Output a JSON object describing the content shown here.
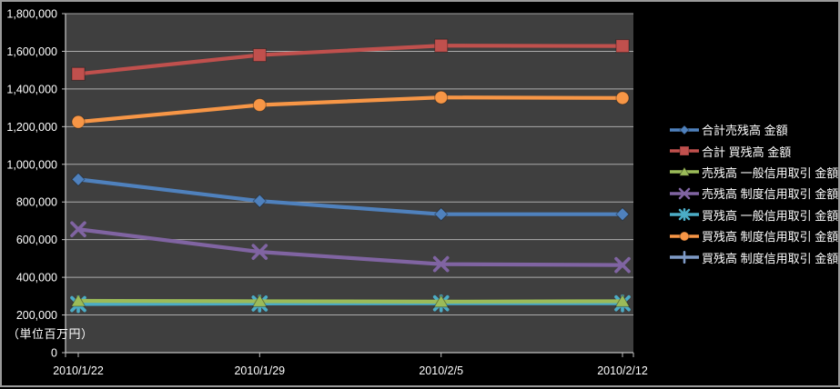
{
  "window": {
    "background": "#000000",
    "frame_border_color": "#9a9a9a"
  },
  "chart_data": {
    "type": "line",
    "title": "",
    "xlabel": "",
    "ylabel": "",
    "unit_label": "（単位百万円）",
    "categories": [
      "2010/1/22",
      "2010/1/29",
      "2010/2/5",
      "2010/2/12"
    ],
    "ylim": [
      0,
      1800000
    ],
    "ytick_step": 200000,
    "yticklabels": [
      "0",
      "200,000",
      "400,000",
      "600,000",
      "800,000",
      "1,000,000",
      "1,200,000",
      "1,400,000",
      "1,600,000",
      "1,800,000"
    ],
    "grid": true,
    "legend_position": "right",
    "plot_bg": "#3F3F3F",
    "grid_color": "#BFBFBF",
    "axis_text_color": "#FFFFFF",
    "series": [
      {
        "name": "合計売残高 金額",
        "color": "#4F81BD",
        "marker": "diamond",
        "values": [
          920000,
          805000,
          735000,
          735000
        ]
      },
      {
        "name": "合計 買残高 金額",
        "color": "#C0504D",
        "marker": "square",
        "values": [
          1480000,
          1580000,
          1630000,
          1628000
        ]
      },
      {
        "name": "売残高 一般信用取引 金額",
        "color": "#9BBB59",
        "marker": "triangle",
        "values": [
          275000,
          273000,
          271000,
          273000
        ]
      },
      {
        "name": "売残高 制度信用取引 金額",
        "color": "#8064A2",
        "marker": "x",
        "values": [
          655000,
          535000,
          470000,
          465000
        ]
      },
      {
        "name": "買残高 一般信用取引 金額",
        "color": "#4BACC6",
        "marker": "star",
        "values": [
          258000,
          261000,
          262000,
          262000
        ]
      },
      {
        "name": "買残高 制度信用取引 金額",
        "color": "#F79646",
        "marker": "circle",
        "values": [
          1225000,
          1315000,
          1355000,
          1352000
        ]
      },
      {
        "name": "買残高 制度信用取引 金額",
        "color": "#7E9AC6",
        "marker": "plus",
        "values": []
      }
    ]
  }
}
